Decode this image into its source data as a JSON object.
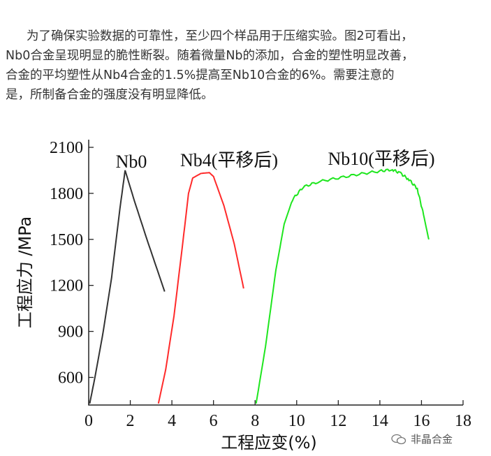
{
  "article": {
    "lines": [
      "为了确保实验数据的可靠性，至少四个样品用于压缩实验。图2可看出，",
      "Nb0合金呈现明显的脆性断裂。随着微量Nb的添加，合金的塑性明显改善，",
      "合金的平均塑性从Nb4合金的1.5%提高至Nb10合金的6%。需要注意的",
      "是，所制备合金的强度没有明显降低。"
    ]
  },
  "chart_data": {
    "type": "line",
    "xlabel": "工程应变(%)",
    "ylabel": "工程应力 /MPa",
    "xlim": [
      0,
      18
    ],
    "ylim": [
      420,
      2150
    ],
    "xticks": [
      0,
      2,
      4,
      6,
      8,
      10,
      12,
      14,
      16,
      18
    ],
    "yticks": [
      600,
      900,
      1200,
      1500,
      1800,
      2100
    ],
    "grid": false,
    "series": [
      {
        "name": "Nb0",
        "color": "#333333",
        "points": [
          [
            0.05,
            430
          ],
          [
            0.3,
            600
          ],
          [
            0.7,
            900
          ],
          [
            1.1,
            1250
          ],
          [
            1.5,
            1700
          ],
          [
            1.75,
            1950
          ],
          [
            2.2,
            1750
          ],
          [
            2.8,
            1500
          ],
          [
            3.3,
            1300
          ],
          [
            3.65,
            1160
          ]
        ]
      },
      {
        "name": "Nb4(平移后)",
        "color": "#ff2a2a",
        "points": [
          [
            3.35,
            430
          ],
          [
            3.7,
            650
          ],
          [
            4.1,
            1000
          ],
          [
            4.5,
            1450
          ],
          [
            4.8,
            1800
          ],
          [
            5.0,
            1900
          ],
          [
            5.4,
            1930
          ],
          [
            5.8,
            1935
          ],
          [
            6.0,
            1910
          ],
          [
            6.5,
            1720
          ],
          [
            7.0,
            1470
          ],
          [
            7.45,
            1180
          ]
        ]
      },
      {
        "name": "Nb10(平移后)",
        "color": "#1ee61e",
        "points": [
          [
            8.05,
            430
          ],
          [
            8.5,
            800
          ],
          [
            9.0,
            1300
          ],
          [
            9.4,
            1600
          ],
          [
            9.8,
            1760
          ],
          [
            10.3,
            1840
          ],
          [
            11.0,
            1875
          ],
          [
            12.0,
            1900
          ],
          [
            13.0,
            1925
          ],
          [
            14.0,
            1945
          ],
          [
            14.6,
            1955
          ],
          [
            15.0,
            1930
          ],
          [
            15.4,
            1890
          ],
          [
            15.8,
            1830
          ],
          [
            16.1,
            1660
          ],
          [
            16.35,
            1500
          ]
        ]
      }
    ]
  },
  "watermark": {
    "text": "非晶合金"
  }
}
